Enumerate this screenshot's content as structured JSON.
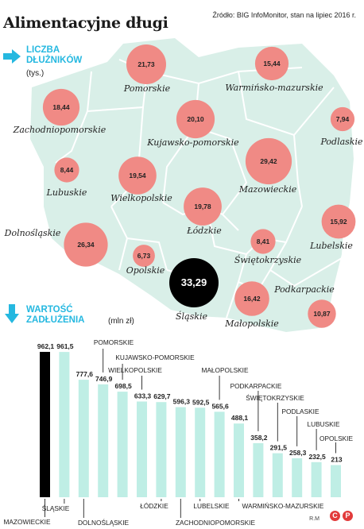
{
  "header": {
    "title": "Alimentacyjne długi",
    "source": "Źródło: BIG InfoMonitor, stan na lipiec 2016 r."
  },
  "section1": {
    "title_line1": "LICZBA",
    "title_line2": "DŁUŻNIKÓW",
    "unit": "(tys.)"
  },
  "section2": {
    "title_line1": "WARTOŚĆ",
    "title_line2": "ZADŁUŻENIA",
    "unit": "(mln zł)"
  },
  "footer": {
    "credit": "R.M",
    "logo_c": "C",
    "logo_p": "P"
  },
  "colors": {
    "map_fill": "#d9efe8",
    "bubble": "#f08a85",
    "highlight": "#000000",
    "bar": "#bfeee5",
    "accent": "#25b8e0",
    "logo": "#e23b3b"
  },
  "chart_data": [
    {
      "type": "scatter",
      "unit": "(tys.)",
      "highlight": "Śląskie",
      "points": [
        {
          "region": "Pomorskie",
          "value": 21.73,
          "label": "21,73"
        },
        {
          "region": "Warmińsko-mazurskie",
          "value": 15.44,
          "label": "15,44"
        },
        {
          "region": "Zachodniopomorskie",
          "value": 18.44,
          "label": "18,44"
        },
        {
          "region": "Kujawsko-pomorskie",
          "value": 20.1,
          "label": "20,10"
        },
        {
          "region": "Podlaskie",
          "value": 7.94,
          "label": "7,94"
        },
        {
          "region": "Lubuskie",
          "value": 8.44,
          "label": "8,44"
        },
        {
          "region": "Wielkopolskie",
          "value": 19.54,
          "label": "19,54"
        },
        {
          "region": "Mazowieckie",
          "value": 29.42,
          "label": "29,42"
        },
        {
          "region": "Łódzkie",
          "value": 19.78,
          "label": "19,78"
        },
        {
          "region": "Dolnośląskie",
          "value": 26.34,
          "label": "26,34"
        },
        {
          "region": "Lubelskie",
          "value": 15.92,
          "label": "15,92"
        },
        {
          "region": "Opolskie",
          "value": 6.73,
          "label": "6,73"
        },
        {
          "region": "Świętokrzyskie",
          "value": 8.41,
          "label": "8,41"
        },
        {
          "region": "Śląskie",
          "value": 33.29,
          "label": "33,29"
        },
        {
          "region": "Podkarpackie",
          "value": 10.87,
          "label": "10,87"
        },
        {
          "region": "Małopolskie",
          "value": 16.42,
          "label": "16,42"
        }
      ]
    },
    {
      "type": "bar",
      "unit": "(mln zł)",
      "highlight": "MAZOWIECKIE",
      "categories": [
        "MAZOWIECKIE",
        "ŚLĄSKIE",
        "DOLNOŚLĄSKIE",
        "POMORSKIE",
        "KUJAWSKO-POMORSKIE",
        "WIELKOPOLSKIE",
        "ŁÓDZKIE",
        "ZACHODNIOPOMORSKIE",
        "LUBELSKIE",
        "MAŁOPOLSKIE",
        "WARMIŃSKO-MAZURSKIE",
        "PODKARPACKIE",
        "ŚWIĘTOKRZYSKIE",
        "PODLASKIE",
        "LUBUSKIE",
        "OPOLSKIE"
      ],
      "values": [
        962.1,
        961.5,
        777.6,
        746.9,
        698.5,
        633.3,
        629.7,
        596.3,
        592.5,
        565.6,
        488.1,
        358.2,
        291.5,
        258.3,
        232.5,
        213
      ],
      "value_labels": [
        "962,1",
        "961,5",
        "777,6",
        "746,9",
        "698,5",
        "633,3",
        "629,7",
        "596,3",
        "592,5",
        "565,6",
        "488,1",
        "358,2",
        "291,5",
        "258,3",
        "232,5",
        "213"
      ],
      "ylim": [
        0,
        962.1
      ]
    }
  ]
}
